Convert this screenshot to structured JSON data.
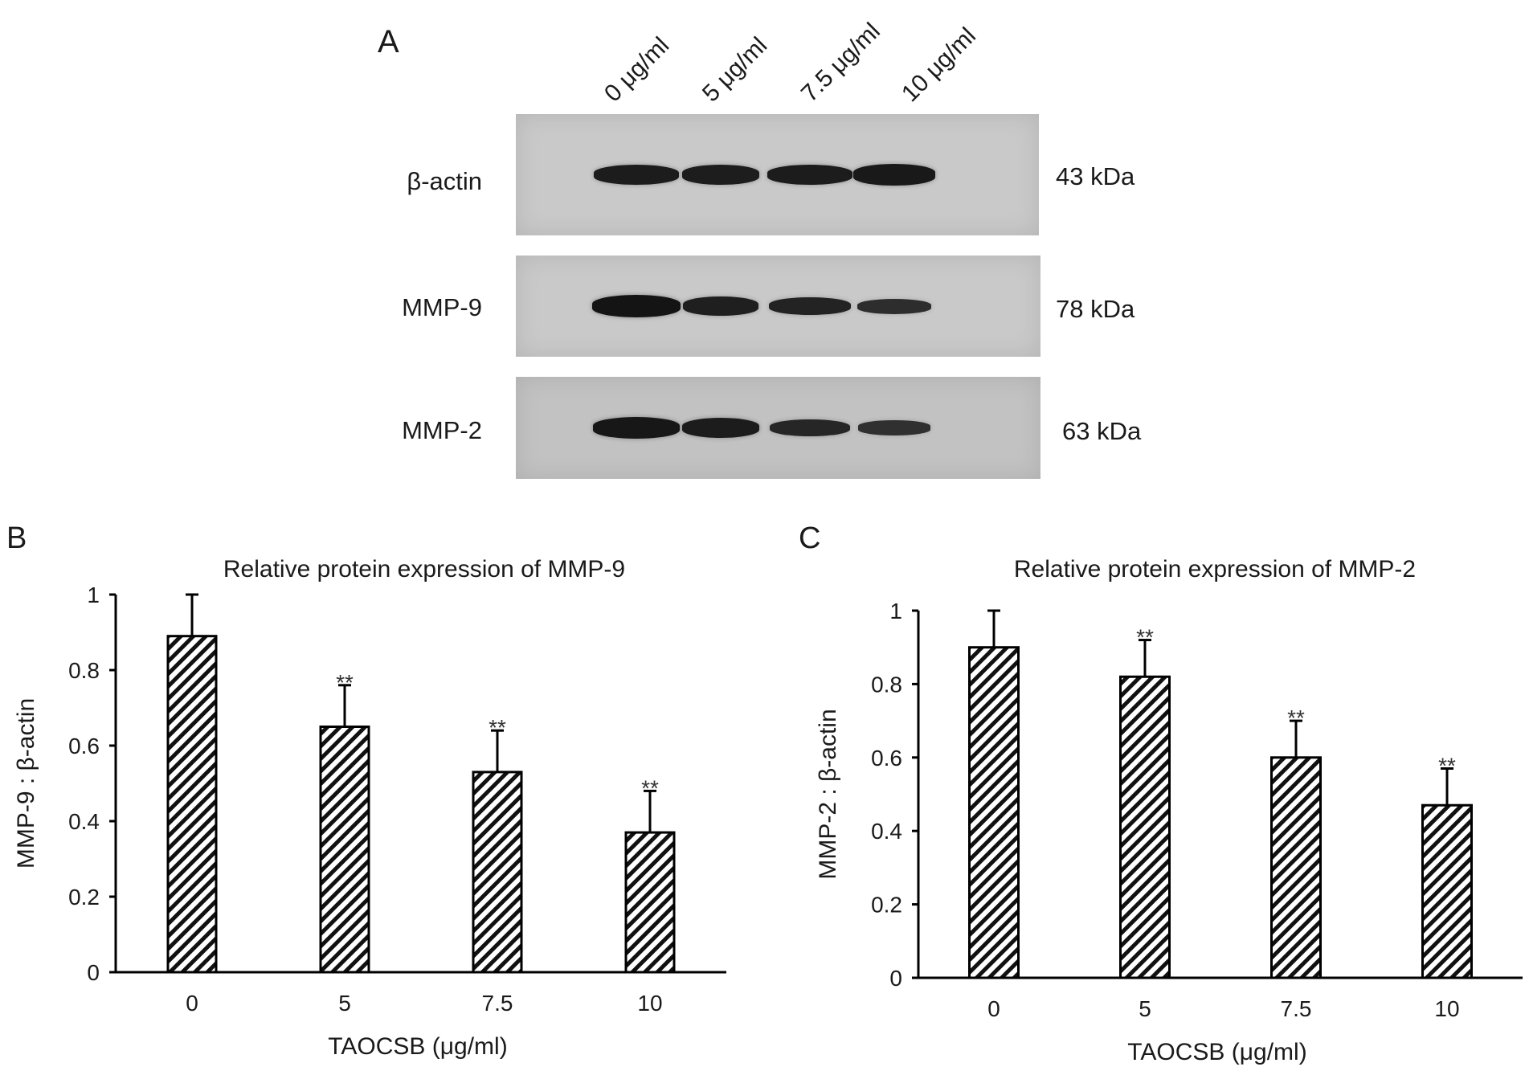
{
  "panel_a": {
    "letter": "A",
    "lanes": [
      "0 μg/ml",
      "5 μg/ml",
      "7.5 μg/ml",
      "10 μg/ml"
    ],
    "rows": [
      {
        "label": "β-actin",
        "kda": "43 kDa",
        "intensity": [
          0.85,
          0.82,
          0.84,
          0.9
        ]
      },
      {
        "label": "MMP-9",
        "kda": "78 kDa",
        "intensity": [
          1.0,
          0.78,
          0.7,
          0.5
        ]
      },
      {
        "label": "MMP-2",
        "kda": "63 kDa",
        "intensity": [
          0.95,
          0.85,
          0.65,
          0.45
        ]
      }
    ]
  },
  "chart_data": [
    {
      "panel": "B",
      "type": "bar",
      "title": "Relative protein expression of MMP-9",
      "xlabel": "TAOCSB (μg/ml)",
      "ylabel": "MMP-9 : β-actin",
      "categories": [
        "0",
        "5",
        "7.5",
        "10"
      ],
      "values": [
        0.89,
        0.65,
        0.53,
        0.37
      ],
      "errors": [
        0.11,
        0.11,
        0.11,
        0.11
      ],
      "significance": [
        "",
        "**",
        "**",
        "**"
      ],
      "yticks": [
        "0",
        "0.2",
        "0.4",
        "0.6",
        "0.8",
        "1"
      ],
      "ylim": [
        0,
        1
      ],
      "pattern": "diagonal-hatch"
    },
    {
      "panel": "C",
      "type": "bar",
      "title": "Relative protein expression of MMP-2",
      "xlabel": "TAOCSB (μg/ml)",
      "ylabel": "MMP-2 : β-actin",
      "categories": [
        "0",
        "5",
        "7.5",
        "10"
      ],
      "values": [
        0.9,
        0.82,
        0.6,
        0.47
      ],
      "errors": [
        0.1,
        0.1,
        0.1,
        0.1
      ],
      "significance": [
        "",
        "**",
        "**",
        "**"
      ],
      "yticks": [
        "0",
        "0.2",
        "0.4",
        "0.6",
        "0.8",
        "1"
      ],
      "ylim": [
        0,
        1
      ],
      "pattern": "diagonal-hatch"
    }
  ]
}
